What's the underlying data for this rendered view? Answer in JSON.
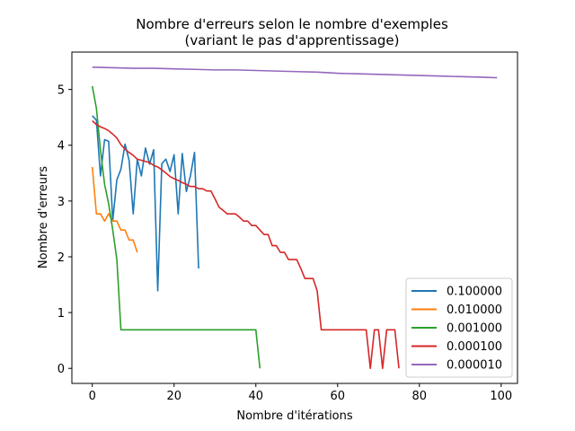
{
  "chart_data": {
    "type": "line",
    "title": "Nombre d'erreurs selon le nombre d'exemples",
    "subtitle": "(variant le pas d'apprentissage)",
    "xlabel": "Nombre d'itérations",
    "ylabel": "Nombre d'erreurs",
    "xlim": [
      -5,
      104
    ],
    "ylim": [
      -0.27,
      5.67
    ],
    "xticks": [
      0,
      20,
      40,
      60,
      80,
      100
    ],
    "yticks": [
      0,
      1,
      2,
      3,
      4,
      5
    ],
    "grid": false,
    "legend_position": "lower-right",
    "series": [
      {
        "name": "0.100000",
        "color": "#1f77b4",
        "x": [
          0,
          1,
          2,
          3,
          4,
          5,
          6,
          7,
          8,
          9,
          10,
          11,
          12,
          13,
          14,
          15,
          16,
          17,
          18,
          19,
          20,
          21,
          22,
          23,
          24,
          25,
          26
        ],
        "y": [
          4.53,
          4.45,
          3.45,
          4.1,
          4.07,
          2.65,
          3.38,
          3.57,
          4.02,
          3.73,
          2.77,
          3.75,
          3.45,
          3.95,
          3.66,
          3.92,
          1.39,
          3.67,
          3.75,
          3.53,
          3.83,
          2.77,
          3.85,
          3.17,
          3.45,
          3.87,
          1.79
        ]
      },
      {
        "name": "0.010000",
        "color": "#ff7f0e",
        "x": [
          0,
          1,
          2,
          3,
          4,
          5,
          6,
          7,
          8,
          9,
          10,
          11
        ],
        "y": [
          3.61,
          2.77,
          2.77,
          2.64,
          2.77,
          2.64,
          2.64,
          2.48,
          2.48,
          2.3,
          2.3,
          2.08
        ]
      },
      {
        "name": "0.001000",
        "color": "#2ca02c",
        "x": [
          0,
          1,
          2,
          3,
          4,
          5,
          6,
          7,
          8,
          9,
          10,
          11,
          12,
          13,
          14,
          15,
          16,
          17,
          18,
          19,
          20,
          21,
          22,
          23,
          24,
          25,
          26,
          27,
          28,
          29,
          30,
          31,
          32,
          33,
          34,
          35,
          36,
          37,
          38,
          39,
          40,
          41
        ],
        "y": [
          5.06,
          4.66,
          3.91,
          3.3,
          2.95,
          2.48,
          1.95,
          0.69,
          0.69,
          0.69,
          0.69,
          0.69,
          0.69,
          0.69,
          0.69,
          0.69,
          0.69,
          0.69,
          0.69,
          0.69,
          0.69,
          0.69,
          0.69,
          0.69,
          0.69,
          0.69,
          0.69,
          0.69,
          0.69,
          0.69,
          0.69,
          0.69,
          0.69,
          0.69,
          0.69,
          0.69,
          0.69,
          0.69,
          0.69,
          0.69,
          0.69,
          0.0
        ]
      },
      {
        "name": "0.000100",
        "color": "#d62728",
        "x": [
          0,
          1,
          2,
          3,
          4,
          5,
          6,
          7,
          8,
          9,
          10,
          11,
          12,
          13,
          14,
          15,
          16,
          17,
          18,
          19,
          20,
          21,
          22,
          23,
          24,
          25,
          26,
          27,
          28,
          29,
          30,
          31,
          32,
          33,
          34,
          35,
          36,
          37,
          38,
          39,
          40,
          41,
          42,
          43,
          44,
          45,
          46,
          47,
          48,
          49,
          50,
          51,
          52,
          53,
          54,
          55,
          56,
          57,
          58,
          59,
          60,
          61,
          62,
          63,
          64,
          65,
          66,
          67,
          68,
          69,
          70,
          71,
          72,
          73,
          74,
          75
        ],
        "y": [
          4.44,
          4.37,
          4.33,
          4.3,
          4.26,
          4.2,
          4.13,
          4.01,
          3.93,
          3.87,
          3.82,
          3.75,
          3.73,
          3.71,
          3.69,
          3.64,
          3.61,
          3.56,
          3.5,
          3.44,
          3.4,
          3.37,
          3.33,
          3.3,
          3.26,
          3.26,
          3.22,
          3.22,
          3.18,
          3.18,
          3.04,
          2.89,
          2.83,
          2.77,
          2.77,
          2.77,
          2.71,
          2.64,
          2.64,
          2.56,
          2.56,
          2.48,
          2.4,
          2.4,
          2.2,
          2.2,
          2.08,
          2.08,
          1.95,
          1.95,
          1.95,
          1.79,
          1.61,
          1.61,
          1.61,
          1.39,
          0.69,
          0.69,
          0.69,
          0.69,
          0.69,
          0.69,
          0.69,
          0.69,
          0.69,
          0.69,
          0.69,
          0.69,
          0.0,
          0.69,
          0.69,
          0.0,
          0.69,
          0.69,
          0.69,
          0.0
        ]
      },
      {
        "name": "0.000010",
        "color": "#9467bd",
        "x": [
          0,
          5,
          10,
          15,
          20,
          25,
          30,
          35,
          40,
          45,
          50,
          55,
          60,
          65,
          70,
          75,
          80,
          85,
          90,
          95,
          99
        ],
        "y": [
          5.4,
          5.39,
          5.38,
          5.38,
          5.37,
          5.36,
          5.35,
          5.35,
          5.34,
          5.33,
          5.32,
          5.31,
          5.29,
          5.28,
          5.27,
          5.26,
          5.25,
          5.24,
          5.23,
          5.22,
          5.21
        ]
      }
    ]
  }
}
